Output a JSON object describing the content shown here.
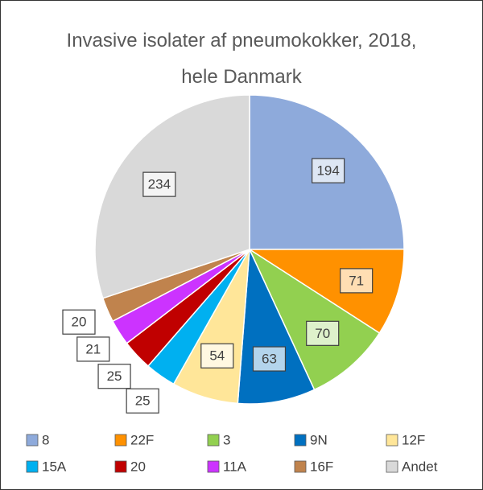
{
  "chart_data": {
    "type": "pie",
    "title": "Invasive isolater af pneumokokker, 2018, hele Danmark",
    "categories": [
      "8",
      "22F",
      "3",
      "9N",
      "12F",
      "15A",
      "20",
      "11A",
      "16F",
      "Andet"
    ],
    "values": [
      194,
      71,
      70,
      63,
      54,
      25,
      25,
      21,
      20,
      234
    ],
    "colors": [
      "#8eaadb",
      "#ff9100",
      "#92d050",
      "#0070c0",
      "#ffe699",
      "#00b0f0",
      "#c00000",
      "#cc33ff",
      "#c0834d",
      "#d9d9d9"
    ]
  }
}
